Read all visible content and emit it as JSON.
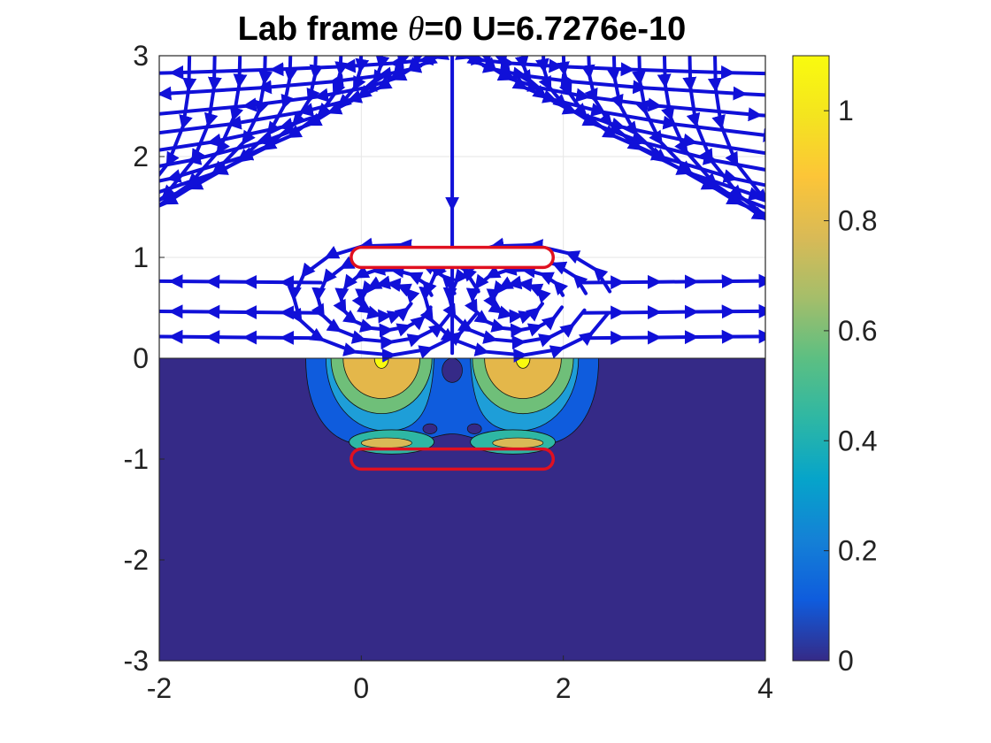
{
  "chart_data": {
    "type": "heatmap",
    "title": {
      "prefix": "Lab frame ",
      "symbol": "θ",
      "suffix": "=0 U=6.7276e-10"
    },
    "xlabel": "",
    "ylabel": "",
    "xlim": [
      -2,
      4
    ],
    "ylim": [
      -3,
      3
    ],
    "x_ticks": [
      "-2",
      "0",
      "2",
      "4"
    ],
    "y_ticks": [
      "3",
      "2",
      "1",
      "0",
      "-1",
      "-2",
      "-3"
    ],
    "grid": true,
    "colorbar": {
      "range": [
        0,
        1.1
      ],
      "ticks": [
        "1",
        "0.8",
        "0.6",
        "0.4",
        "0.2",
        "0"
      ],
      "tick_values": [
        1,
        0.8,
        0.6,
        0.4,
        0.2,
        0
      ],
      "colormap": "parula"
    },
    "swimmers": [
      {
        "name": "top",
        "x_range": [
          -0.1,
          1.9
        ],
        "y_center": 1.0,
        "half_height": 0.1
      },
      {
        "name": "image",
        "x_range": [
          -0.1,
          1.9
        ],
        "y_center": -1.0,
        "half_height": 0.1
      }
    ],
    "contour_peaks": [
      {
        "x": 0.2,
        "y": -0.05,
        "value": 1.1
      },
      {
        "x": 1.6,
        "y": -0.05,
        "value": 1.1
      }
    ],
    "streamline_color": "#1010d8",
    "swimmer_color": "#e01020",
    "background_level_color": "#352a87"
  }
}
